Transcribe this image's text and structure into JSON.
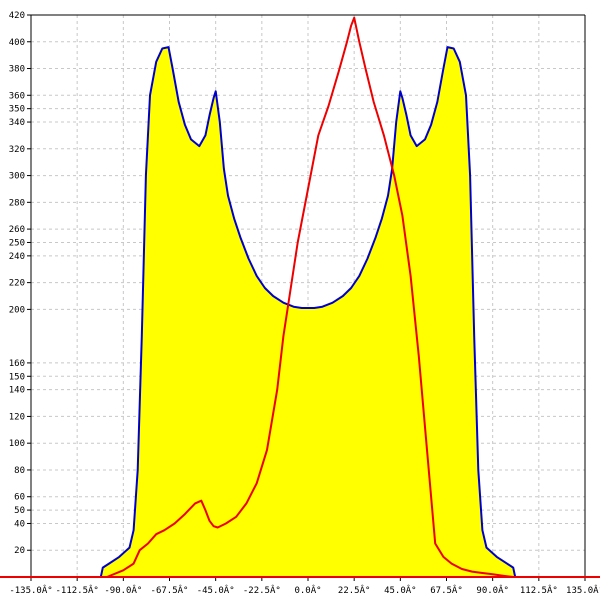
{
  "chart_data": {
    "type": "area",
    "title": "",
    "xlabel": "",
    "ylabel": "",
    "xlim": [
      -135,
      135
    ],
    "ylim": [
      0,
      420
    ],
    "grid": true,
    "background": "#ffffff",
    "x_ticks": [
      -135,
      -112.5,
      -90,
      -67.5,
      -45,
      -22.5,
      0,
      22.5,
      45,
      67.5,
      90,
      112.5,
      135
    ],
    "x_tick_labels": [
      "-135.0Â°",
      "-112.5Â°",
      "-90.0Â°",
      "-67.5Â°",
      "-45.0Â°",
      "-22.5Â°",
      "0.0Â°",
      "22.5Â°",
      "45.0Â°",
      "67.5Â°",
      "90.0Â°",
      "112.5Â°",
      "135.0Â°"
    ],
    "y_ticks": [
      20,
      40,
      50,
      60,
      80,
      100,
      120,
      140,
      150,
      160,
      200,
      220,
      240,
      250,
      260,
      280,
      300,
      320,
      340,
      350,
      360,
      380,
      400,
      420
    ],
    "y_tick_labels": [
      "20",
      "40",
      "50",
      "60",
      "80",
      "100",
      "120",
      "140",
      "150",
      "160",
      "200",
      "220",
      "240",
      "250",
      "260",
      "280",
      "300",
      "320",
      "340",
      "350",
      "360",
      "380",
      "400",
      "420"
    ],
    "series": [
      {
        "color": "#0000cc",
        "fill": "#ffff00",
        "x": [
          -101,
          -100,
          -97,
          -92,
          -87,
          -85,
          -83,
          -81,
          -79,
          -77,
          -74,
          -71,
          -68,
          -66,
          -63,
          -60,
          -57,
          -53,
          -50,
          -48,
          -46,
          -45,
          -43,
          -41,
          -39,
          -36,
          -33,
          -29,
          -25,
          -21,
          -17,
          -12,
          -7,
          -3,
          0,
          3,
          7,
          12,
          17,
          21,
          25,
          29,
          33,
          36,
          39,
          41,
          43,
          45,
          46,
          48,
          50,
          53,
          57,
          60,
          63,
          66,
          68,
          71,
          74,
          77,
          79,
          81,
          83,
          85,
          87,
          92,
          97,
          100,
          101
        ],
        "y": [
          0,
          7,
          10,
          15,
          22,
          35,
          80,
          180,
          300,
          360,
          385,
          395,
          396,
          380,
          355,
          338,
          327,
          322,
          330,
          345,
          358,
          363,
          340,
          305,
          285,
          268,
          254,
          238,
          225,
          216,
          210,
          205,
          202,
          201,
          201,
          201,
          202,
          205,
          210,
          216,
          225,
          238,
          254,
          268,
          285,
          305,
          340,
          363,
          358,
          345,
          330,
          322,
          327,
          338,
          355,
          380,
          396,
          395,
          385,
          360,
          300,
          180,
          80,
          35,
          22,
          15,
          10,
          7,
          0
        ]
      },
      {
        "color": "#ee0000",
        "fill": "none",
        "x": [
          -98,
          -90,
          -85,
          -82,
          -78,
          -74,
          -70,
          -65,
          -60,
          -55,
          -52,
          -50,
          -48,
          -46,
          -44,
          -40,
          -35,
          -30,
          -25,
          -20,
          -15,
          -12,
          -10,
          -5,
          0,
          5,
          10,
          15,
          19,
          21,
          22.5,
          25,
          28,
          32,
          37,
          42,
          46,
          50,
          54,
          58,
          62,
          66,
          70,
          75,
          80,
          85,
          90,
          95,
          100
        ],
        "y": [
          0,
          5,
          10,
          20,
          25,
          32,
          35,
          40,
          47,
          55,
          57,
          50,
          42,
          38,
          37,
          40,
          45,
          55,
          70,
          95,
          140,
          180,
          200,
          250,
          290,
          330,
          352,
          378,
          400,
          412,
          418,
          400,
          380,
          355,
          330,
          300,
          270,
          225,
          165,
          95,
          25,
          15,
          10,
          6,
          4,
          3,
          2,
          1,
          0
        ]
      }
    ]
  }
}
